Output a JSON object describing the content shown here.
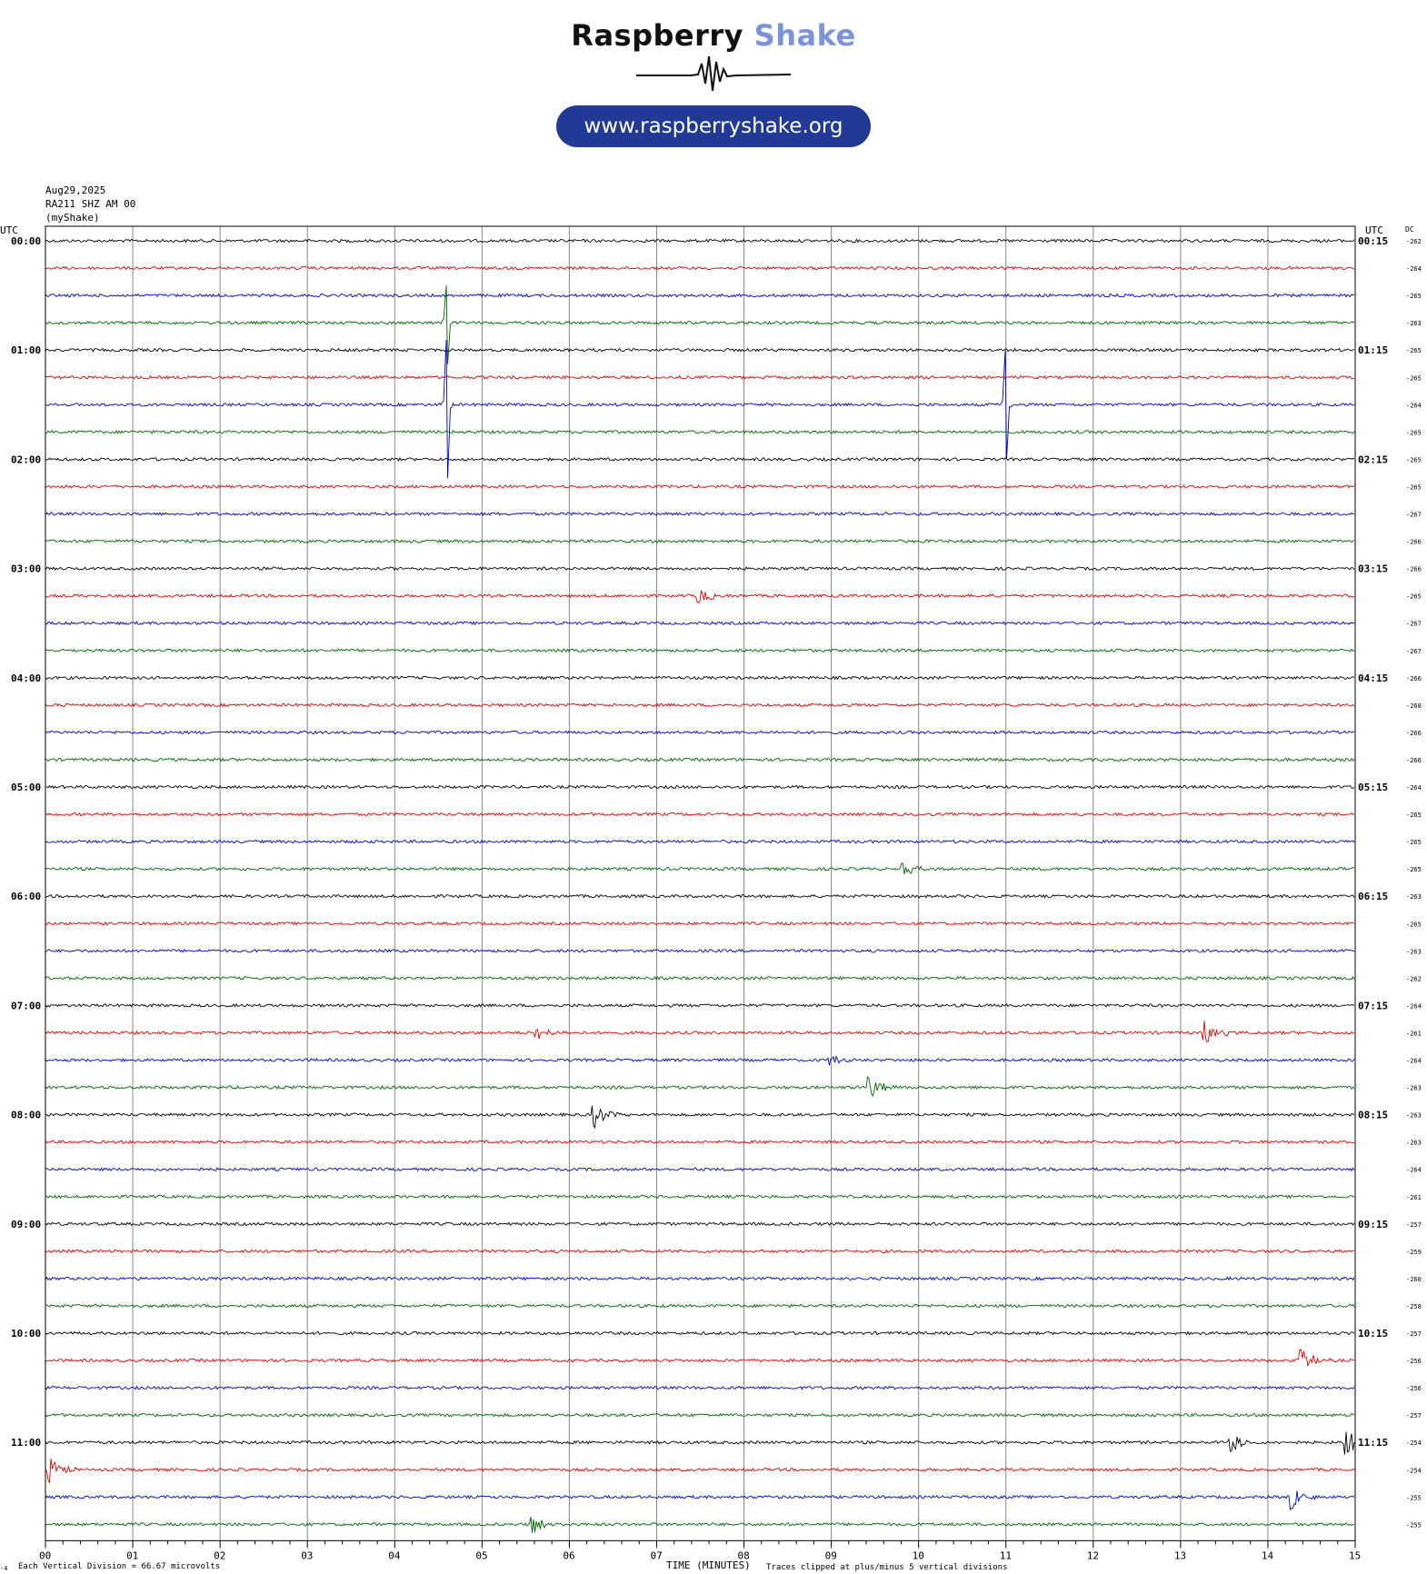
{
  "header": {
    "brand_dark": "Raspberry",
    "brand_accent": "Shake",
    "url": "www.raspberryshake.org"
  },
  "meta": {
    "date": "Aug29,2025",
    "station": "RA211 SHZ AM 00",
    "network": "(myShake)"
  },
  "axis": {
    "left_unit": "UTC",
    "right_unit": "UTC",
    "dc_label": "DC",
    "xlabel": "TIME (MINUTES)",
    "scale_note": "Each Vertical Division =   66.67 microvolts",
    "clip_note": "Traces clipped at plus/minus 5 vertical divisions",
    "corner_mark": "-4"
  },
  "colors": {
    "trace": [
      "#000000",
      "#e00000",
      "#0000d0",
      "#006400"
    ],
    "grid": "#888888"
  },
  "chart_data": {
    "type": "line",
    "xlim": [
      0,
      15
    ],
    "x_ticks": [
      "00",
      "01",
      "02",
      "03",
      "04",
      "05",
      "06",
      "07",
      "08",
      "09",
      "10",
      "11",
      "12",
      "13",
      "14",
      "15"
    ],
    "left_hours": [
      "00:00",
      "01:00",
      "02:00",
      "03:00",
      "04:00",
      "05:00",
      "06:00",
      "07:00",
      "08:00",
      "09:00",
      "10:00",
      "11:00"
    ],
    "right_hours": [
      "00:15",
      "01:15",
      "02:15",
      "03:15",
      "04:15",
      "05:15",
      "06:15",
      "07:15",
      "08:15",
      "09:15",
      "10:15",
      "11:15"
    ],
    "dc_values": [
      "-262",
      "-264",
      "-265",
      "-263",
      "-265",
      "-265",
      "-264",
      "-265",
      "-265",
      "-265",
      "-267",
      "-266",
      "-266",
      "-265",
      "-267",
      "-267",
      "-266",
      "-268",
      "-266",
      "-266",
      "-264",
      "-265",
      "-265",
      "-265",
      "-263",
      "-265",
      "-263",
      "-262",
      "-264",
      "-261",
      "-264",
      "-263",
      "-263",
      "-263",
      "-264",
      "-261",
      "-257",
      "-259",
      "-260",
      "-258",
      "-257",
      "-256",
      "-256",
      "-257",
      "-254",
      "-254",
      "-255",
      "-255"
    ],
    "events": [
      {
        "row": 3,
        "minute": 4.6,
        "amp": 8,
        "type": "spike"
      },
      {
        "row": 6,
        "minute": 4.6,
        "amp": 14,
        "type": "spike"
      },
      {
        "row": 6,
        "minute": 11.0,
        "amp": 11,
        "type": "spike"
      },
      {
        "row": 13,
        "minute": 7.5,
        "amp": 2,
        "type": "burst"
      },
      {
        "row": 23,
        "minute": 9.85,
        "amp": 1.5,
        "type": "burst"
      },
      {
        "row": 29,
        "minute": 5.65,
        "amp": 2,
        "type": "burst"
      },
      {
        "row": 29,
        "minute": 13.3,
        "amp": 3,
        "type": "burst"
      },
      {
        "row": 30,
        "minute": 9.0,
        "amp": 1.5,
        "type": "burst"
      },
      {
        "row": 31,
        "minute": 9.45,
        "amp": 3,
        "type": "burst"
      },
      {
        "row": 32,
        "minute": 6.3,
        "amp": 3,
        "type": "burst"
      },
      {
        "row": 41,
        "minute": 14.4,
        "amp": 3,
        "type": "burst"
      },
      {
        "row": 44,
        "minute": 13.6,
        "amp": 2.5,
        "type": "burst"
      },
      {
        "row": 44,
        "minute": 14.9,
        "amp": 4,
        "type": "burst"
      },
      {
        "row": 45,
        "minute": 0.05,
        "amp": 3,
        "type": "burst"
      },
      {
        "row": 46,
        "minute": 14.3,
        "amp": 3,
        "type": "burst"
      },
      {
        "row": 47,
        "minute": 5.6,
        "amp": 2.5,
        "type": "burst"
      }
    ]
  }
}
